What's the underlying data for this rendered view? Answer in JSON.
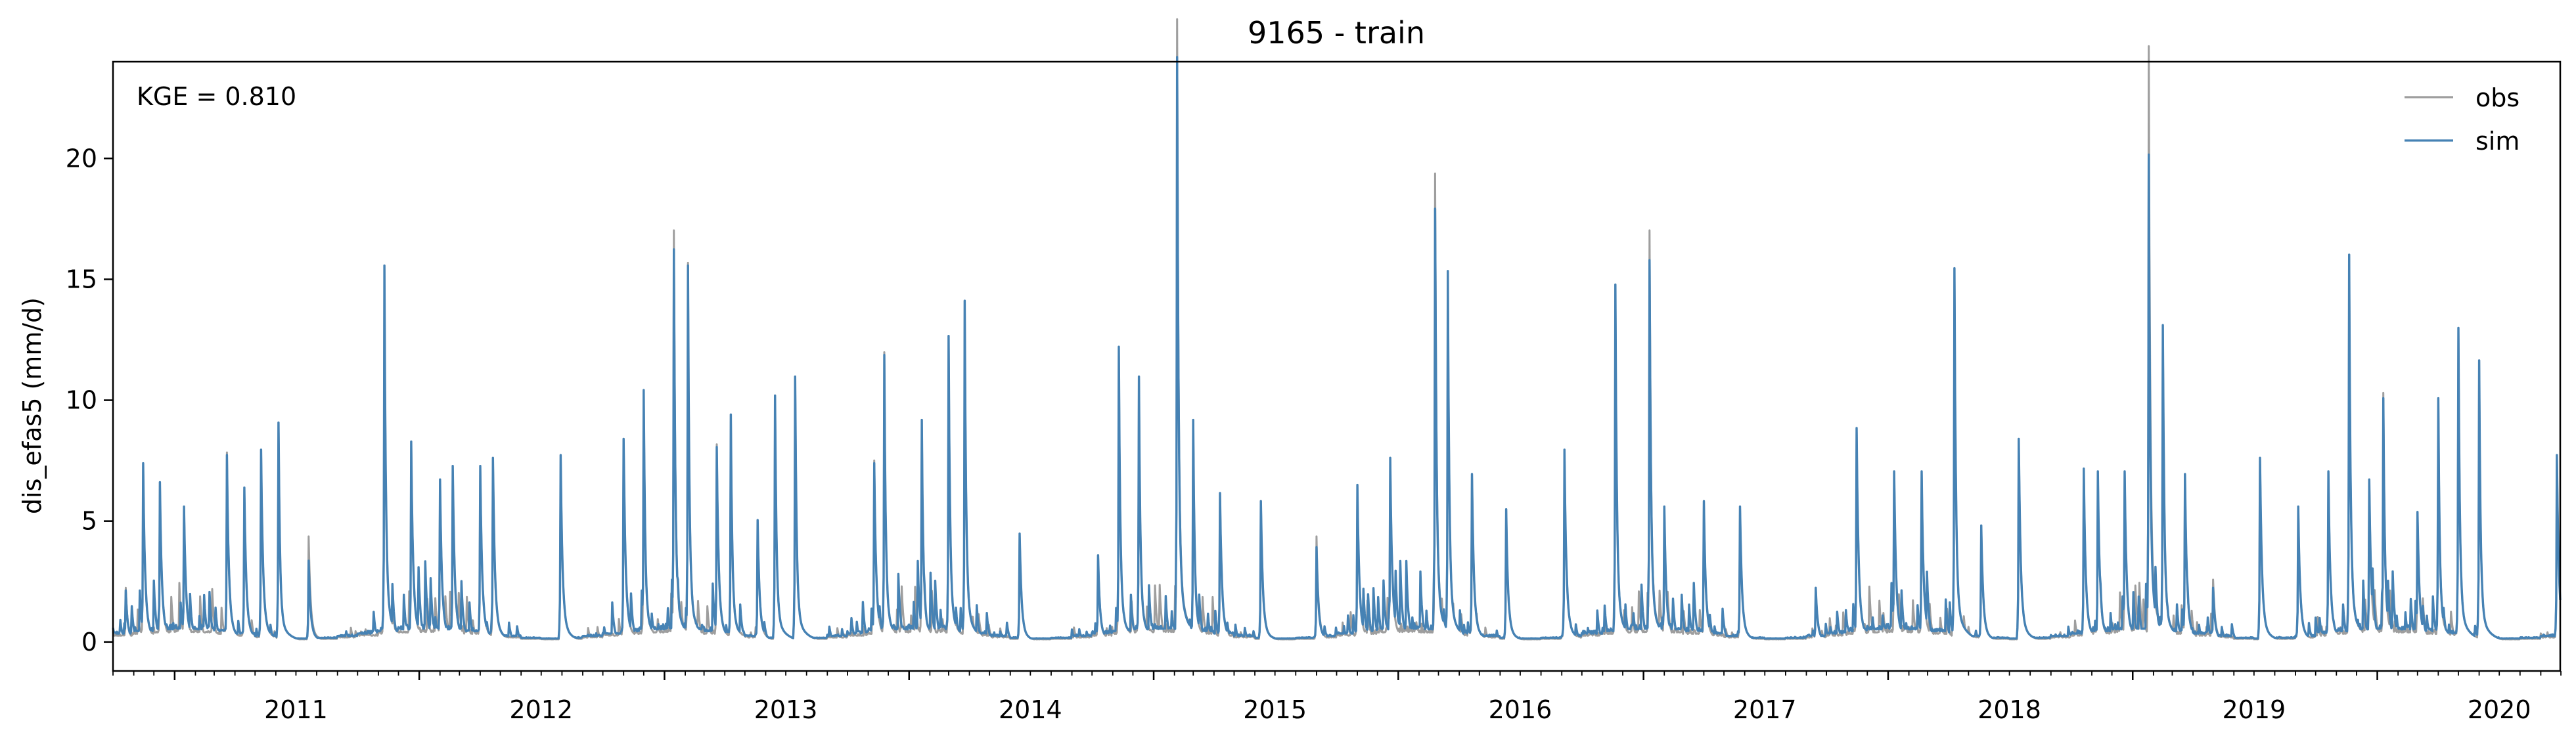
{
  "chart_data": {
    "type": "line",
    "title": "9165 - train",
    "xlabel": "",
    "ylabel": "dis_efas5 (mm/d)",
    "annotation": "KGE = 0.810",
    "x_range": [
      "2010-10-01",
      "2020-09-30"
    ],
    "ylim": [
      -1.2,
      24.0
    ],
    "yticks": [
      0,
      5,
      10,
      15,
      20
    ],
    "xticks": [
      "2011",
      "2012",
      "2013",
      "2014",
      "2015",
      "2016",
      "2017",
      "2018",
      "2019",
      "2020"
    ],
    "grid": false,
    "legend_position": "top-right",
    "series": [
      {
        "name": "obs",
        "color": "#9e9e9e",
        "peaks": [
          [
            "2010-10-20",
            2.0
          ],
          [
            "2010-11-15",
            6.5
          ],
          [
            "2010-12-10",
            5.9
          ],
          [
            "2011-01-15",
            5.0
          ],
          [
            "2011-03-20",
            7.0
          ],
          [
            "2011-04-15",
            5.6
          ],
          [
            "2011-05-10",
            7.1
          ],
          [
            "2011-06-05",
            8.1
          ],
          [
            "2011-07-20",
            3.9
          ],
          [
            "2011-11-10",
            13.9
          ],
          [
            "2011-12-20",
            7.4
          ],
          [
            "2012-02-01",
            6.0
          ],
          [
            "2012-02-20",
            6.5
          ],
          [
            "2012-04-01",
            6.5
          ],
          [
            "2012-04-20",
            6.8
          ],
          [
            "2012-07-30",
            6.9
          ],
          [
            "2012-11-01",
            7.5
          ],
          [
            "2012-12-01",
            9.3
          ],
          [
            "2013-01-15",
            15.2
          ],
          [
            "2013-02-05",
            14.0
          ],
          [
            "2013-03-20",
            7.3
          ],
          [
            "2013-04-10",
            8.4
          ],
          [
            "2013-05-20",
            4.5
          ],
          [
            "2013-06-15",
            9.1
          ],
          [
            "2013-07-15",
            9.8
          ],
          [
            "2013-11-10",
            6.7
          ],
          [
            "2013-11-25",
            10.7
          ],
          [
            "2014-01-20",
            8.2
          ],
          [
            "2014-03-01",
            11.3
          ],
          [
            "2014-03-25",
            12.6
          ],
          [
            "2014-06-15",
            4.0
          ],
          [
            "2014-10-10",
            3.2
          ],
          [
            "2014-11-10",
            10.9
          ],
          [
            "2014-12-10",
            9.8
          ],
          [
            "2015-02-05",
            23.0
          ],
          [
            "2015-03-01",
            8.2
          ],
          [
            "2015-04-10",
            5.5
          ],
          [
            "2015-06-10",
            5.2
          ],
          [
            "2015-09-01",
            3.9
          ],
          [
            "2015-11-01",
            5.8
          ],
          [
            "2015-12-20",
            6.8
          ],
          [
            "2016-02-25",
            17.3
          ],
          [
            "2016-03-15",
            13.7
          ],
          [
            "2016-04-20",
            6.2
          ],
          [
            "2016-06-10",
            4.9
          ],
          [
            "2016-09-05",
            7.1
          ],
          [
            "2016-11-20",
            13.2
          ],
          [
            "2017-01-10",
            15.2
          ],
          [
            "2017-02-01",
            5.0
          ],
          [
            "2017-04-01",
            5.2
          ],
          [
            "2017-05-25",
            5.0
          ],
          [
            "2017-09-15",
            2.0
          ],
          [
            "2017-11-15",
            7.9
          ],
          [
            "2018-01-10",
            6.3
          ],
          [
            "2018-02-20",
            6.3
          ],
          [
            "2018-04-10",
            13.8
          ],
          [
            "2018-05-20",
            4.3
          ],
          [
            "2018-07-15",
            7.5
          ],
          [
            "2018-10-20",
            6.4
          ],
          [
            "2018-11-10",
            6.3
          ],
          [
            "2018-12-20",
            6.3
          ],
          [
            "2019-01-25",
            22.0
          ],
          [
            "2019-02-15",
            11.7
          ],
          [
            "2019-03-20",
            6.2
          ],
          [
            "2019-05-01",
            2.3
          ],
          [
            "2019-07-10",
            6.8
          ],
          [
            "2019-09-05",
            5.0
          ],
          [
            "2019-10-20",
            6.3
          ],
          [
            "2019-11-20",
            14.3
          ],
          [
            "2019-12-20",
            6.0
          ],
          [
            "2020-01-10",
            9.2
          ],
          [
            "2020-03-01",
            4.8
          ],
          [
            "2020-04-01",
            9.0
          ],
          [
            "2020-05-01",
            11.6
          ],
          [
            "2020-06-01",
            10.4
          ],
          [
            "2020-09-25",
            6.9
          ]
        ]
      },
      {
        "name": "sim",
        "color": "#4682b4",
        "peaks": [
          [
            "2010-10-20",
            1.9
          ],
          [
            "2010-11-15",
            6.6
          ],
          [
            "2010-12-10",
            5.9
          ],
          [
            "2011-01-15",
            5.0
          ],
          [
            "2011-03-20",
            6.9
          ],
          [
            "2011-04-15",
            5.7
          ],
          [
            "2011-05-10",
            7.1
          ],
          [
            "2011-06-05",
            8.1
          ],
          [
            "2011-07-20",
            3.0
          ],
          [
            "2011-11-10",
            13.9
          ],
          [
            "2011-12-20",
            7.4
          ],
          [
            "2012-02-01",
            6.0
          ],
          [
            "2012-02-20",
            6.5
          ],
          [
            "2012-04-01",
            6.5
          ],
          [
            "2012-04-20",
            6.8
          ],
          [
            "2012-07-30",
            6.9
          ],
          [
            "2012-11-01",
            7.5
          ],
          [
            "2012-12-01",
            9.3
          ],
          [
            "2013-01-15",
            14.5
          ],
          [
            "2013-02-05",
            13.9
          ],
          [
            "2013-03-20",
            7.2
          ],
          [
            "2013-04-10",
            8.4
          ],
          [
            "2013-05-20",
            4.5
          ],
          [
            "2013-06-15",
            9.1
          ],
          [
            "2013-07-15",
            9.8
          ],
          [
            "2013-11-10",
            6.6
          ],
          [
            "2013-11-25",
            10.6
          ],
          [
            "2014-01-20",
            8.2
          ],
          [
            "2014-03-01",
            11.3
          ],
          [
            "2014-03-25",
            12.6
          ],
          [
            "2014-06-15",
            4.0
          ],
          [
            "2014-10-10",
            3.2
          ],
          [
            "2014-11-10",
            10.9
          ],
          [
            "2014-12-10",
            9.8
          ],
          [
            "2015-02-05",
            21.6
          ],
          [
            "2015-03-01",
            8.2
          ],
          [
            "2015-04-10",
            5.5
          ],
          [
            "2015-06-10",
            5.2
          ],
          [
            "2015-09-01",
            3.5
          ],
          [
            "2015-11-01",
            5.8
          ],
          [
            "2015-12-20",
            6.8
          ],
          [
            "2016-02-25",
            16.0
          ],
          [
            "2016-03-15",
            13.7
          ],
          [
            "2016-04-20",
            6.2
          ],
          [
            "2016-06-10",
            4.9
          ],
          [
            "2016-09-05",
            7.1
          ],
          [
            "2016-11-20",
            13.2
          ],
          [
            "2017-01-10",
            14.1
          ],
          [
            "2017-02-01",
            5.0
          ],
          [
            "2017-04-01",
            5.2
          ],
          [
            "2017-05-25",
            5.0
          ],
          [
            "2017-09-15",
            2.0
          ],
          [
            "2017-11-15",
            7.9
          ],
          [
            "2018-01-10",
            6.3
          ],
          [
            "2018-02-20",
            6.3
          ],
          [
            "2018-04-10",
            13.8
          ],
          [
            "2018-05-20",
            4.3
          ],
          [
            "2018-07-15",
            7.5
          ],
          [
            "2018-10-20",
            6.4
          ],
          [
            "2018-11-10",
            6.3
          ],
          [
            "2018-12-20",
            6.3
          ],
          [
            "2019-01-25",
            18.0
          ],
          [
            "2019-02-15",
            11.7
          ],
          [
            "2019-03-20",
            6.2
          ],
          [
            "2019-05-01",
            2.0
          ],
          [
            "2019-07-10",
            6.8
          ],
          [
            "2019-09-05",
            5.0
          ],
          [
            "2019-10-20",
            6.3
          ],
          [
            "2019-11-20",
            14.3
          ],
          [
            "2019-12-20",
            6.0
          ],
          [
            "2020-01-10",
            9.0
          ],
          [
            "2020-03-01",
            4.8
          ],
          [
            "2020-04-01",
            9.0
          ],
          [
            "2020-05-01",
            11.6
          ],
          [
            "2020-06-01",
            10.4
          ],
          [
            "2020-09-25",
            6.9
          ]
        ]
      }
    ]
  }
}
